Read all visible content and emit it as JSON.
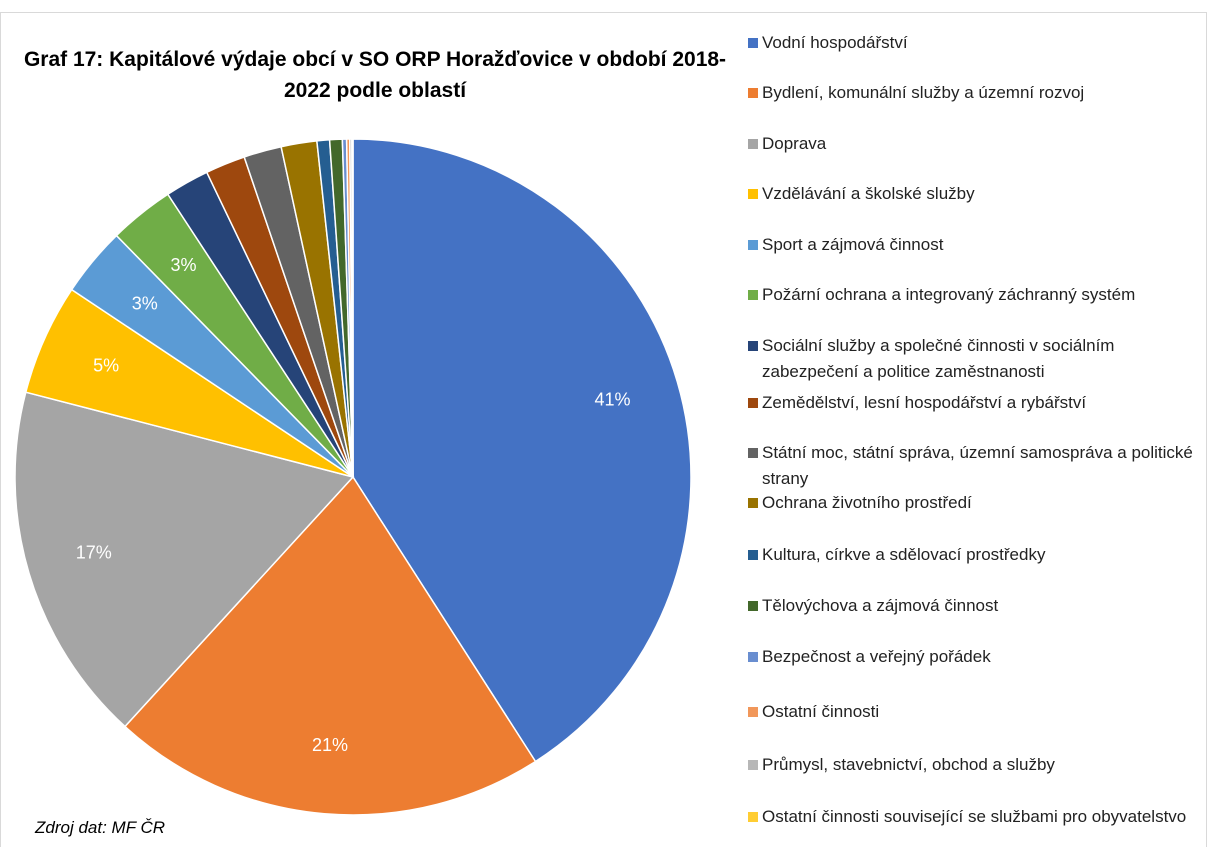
{
  "chart_data": {
    "type": "pie",
    "title": "Graf 17: Kapitálové výdaje obcí v SO ORP Horažďovice v období 2018-2022 podle oblastí",
    "source": "Zdroj dat: MF ČR",
    "categories": [
      "Vodní hospodářství",
      "Bydlení, komunální služby a územní rozvoj",
      "Doprava",
      "Vzdělávání a školské služby",
      "Sport a zájmová činnost",
      "Požární ochrana a integrovaný záchranný systém",
      "Sociální služby a společné činnosti v sociálním zabezpečení a politice zaměstnanosti",
      "Zemědělství, lesní hospodářství a rybářství",
      "Státní moc, státní správa, územní samospráva a politické strany",
      "Ochrana životního prostředí",
      "Kultura, církve a sdělovací prostředky",
      "Tělovýchova a zájmová činnost",
      "Bezpečnost a veřejný pořádek",
      "Ostatní činnosti",
      "Průmysl, stavebnictví, obchod a služby",
      "Ostatní činnosti související se službami pro obyvatelstvo"
    ],
    "values": [
      40.8,
      20.8,
      17.2,
      5.3,
      3.3,
      3.1,
      2.1,
      1.9,
      1.8,
      1.7,
      0.6,
      0.6,
      0.2,
      0.15,
      0.1,
      0.05
    ],
    "value_labels": [
      "41%",
      "21%",
      "17%",
      "5%",
      "3%",
      "3%",
      null,
      null,
      null,
      null,
      null,
      null,
      null,
      null,
      null,
      null
    ],
    "colors": [
      "#4472C4",
      "#ED7D31",
      "#A5A5A5",
      "#FFC000",
      "#5B9BD5",
      "#70AD47",
      "#264478",
      "#9E480E",
      "#636363",
      "#997300",
      "#255E91",
      "#43682B",
      "#698ED0",
      "#F1975A",
      "#B7B7B7",
      "#FFCD33"
    ],
    "legend": "right"
  }
}
